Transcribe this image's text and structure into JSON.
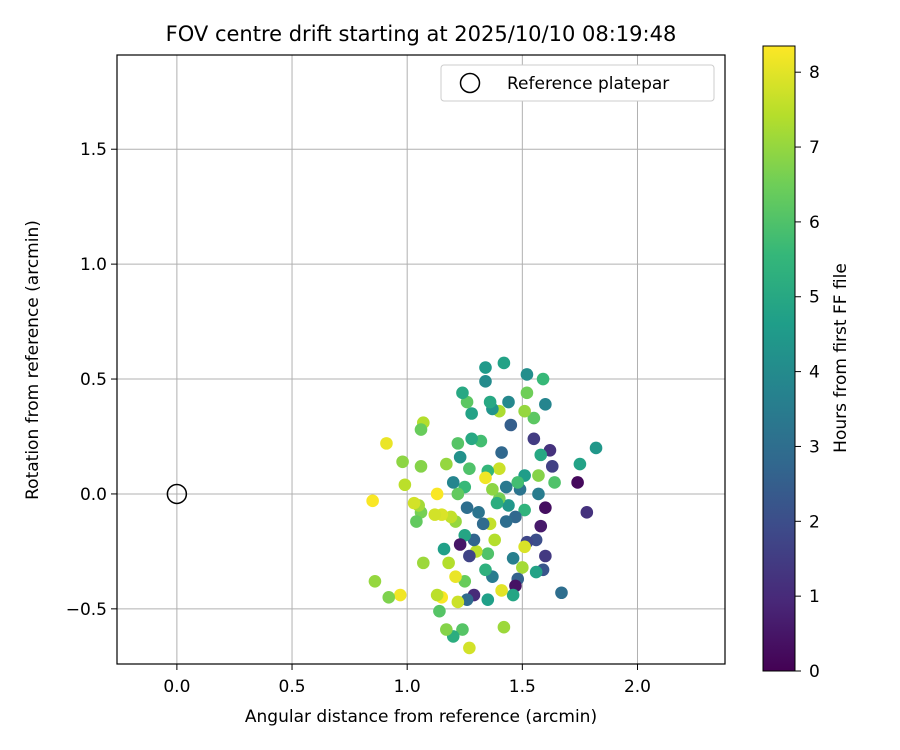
{
  "chart_data": {
    "type": "scatter",
    "title": "FOV centre drift starting at 2025/10/10 08:19:48",
    "xlabel": "Angular distance from reference (arcmin)",
    "ylabel": "Rotation from reference (arcmin)",
    "xlim": [
      -0.26,
      2.38
    ],
    "ylim": [
      -0.74,
      1.91
    ],
    "xticks": [
      0.0,
      0.5,
      1.0,
      1.5,
      2.0
    ],
    "xtick_labels": [
      "0.0",
      "0.5",
      "1.0",
      "1.5",
      "2.0"
    ],
    "yticks": [
      -0.5,
      0.0,
      0.5,
      1.0,
      1.5
    ],
    "ytick_labels": [
      "−0.5",
      "0.0",
      "0.5",
      "1.0",
      "1.5"
    ],
    "grid": true,
    "legend": {
      "position": "top-right",
      "entries": [
        "Reference platepar"
      ]
    },
    "reference_point": {
      "x": 0.0,
      "y": 0.0
    },
    "colorbar": {
      "label": "Hours from first FF file",
      "min": 0,
      "max": 8.35,
      "ticks": [
        0,
        1,
        2,
        3,
        4,
        5,
        6,
        7,
        8
      ],
      "tick_labels": [
        "0",
        "1",
        "2",
        "3",
        "4",
        "5",
        "6",
        "7",
        "8"
      ],
      "colormap": [
        "#440154",
        "#482878",
        "#3e4989",
        "#31688e",
        "#26828e",
        "#1f9e89",
        "#35b779",
        "#6ece58",
        "#b5de2b",
        "#fde725"
      ]
    },
    "points": [
      {
        "x": 1.82,
        "y": 0.2,
        "t": 4.4
      },
      {
        "x": 1.78,
        "y": -0.08,
        "t": 1.2
      },
      {
        "x": 1.74,
        "y": 0.05,
        "t": 0.2
      },
      {
        "x": 1.75,
        "y": 0.13,
        "t": 4.8
      },
      {
        "x": 1.67,
        "y": -0.43,
        "t": 3.0
      },
      {
        "x": 1.64,
        "y": 0.05,
        "t": 6.0
      },
      {
        "x": 1.63,
        "y": 0.12,
        "t": 1.6
      },
      {
        "x": 1.62,
        "y": 0.19,
        "t": 1.2
      },
      {
        "x": 1.6,
        "y": -0.27,
        "t": 1.4
      },
      {
        "x": 1.6,
        "y": -0.06,
        "t": 0.3
      },
      {
        "x": 1.6,
        "y": 0.39,
        "t": 3.8
      },
      {
        "x": 1.59,
        "y": 0.5,
        "t": 5.6
      },
      {
        "x": 1.58,
        "y": -0.14,
        "t": 0.6
      },
      {
        "x": 1.59,
        "y": -0.33,
        "t": 2.2
      },
      {
        "x": 1.58,
        "y": 0.17,
        "t": 5.0
      },
      {
        "x": 1.57,
        "y": 0.08,
        "t": 6.8
      },
      {
        "x": 1.57,
        "y": 0.0,
        "t": 3.5
      },
      {
        "x": 1.56,
        "y": -0.2,
        "t": 2.0
      },
      {
        "x": 1.56,
        "y": -0.34,
        "t": 4.8
      },
      {
        "x": 1.55,
        "y": 0.24,
        "t": 1.5
      },
      {
        "x": 1.55,
        "y": 0.33,
        "t": 6.2
      },
      {
        "x": 1.52,
        "y": -0.21,
        "t": 1.8
      },
      {
        "x": 1.52,
        "y": 0.52,
        "t": 4.1
      },
      {
        "x": 1.52,
        "y": 0.44,
        "t": 6.5
      },
      {
        "x": 1.51,
        "y": 0.36,
        "t": 7.0
      },
      {
        "x": 1.51,
        "y": 0.08,
        "t": 4.6
      },
      {
        "x": 1.51,
        "y": -0.07,
        "t": 5.4
      },
      {
        "x": 1.51,
        "y": -0.23,
        "t": 7.9
      },
      {
        "x": 1.5,
        "y": -0.32,
        "t": 7.2
      },
      {
        "x": 1.49,
        "y": 0.02,
        "t": 3.2
      },
      {
        "x": 1.48,
        "y": -0.37,
        "t": 2.6
      },
      {
        "x": 1.48,
        "y": 0.05,
        "t": 5.8
      },
      {
        "x": 1.47,
        "y": -0.4,
        "t": 0.4
      },
      {
        "x": 1.47,
        "y": -0.1,
        "t": 2.8
      },
      {
        "x": 1.46,
        "y": -0.28,
        "t": 3.6
      },
      {
        "x": 1.46,
        "y": -0.44,
        "t": 4.9
      },
      {
        "x": 1.45,
        "y": 0.3,
        "t": 2.5
      },
      {
        "x": 1.44,
        "y": 0.4,
        "t": 3.9
      },
      {
        "x": 1.44,
        "y": -0.05,
        "t": 4.4
      },
      {
        "x": 1.43,
        "y": -0.12,
        "t": 3.0
      },
      {
        "x": 1.43,
        "y": 0.03,
        "t": 3.4
      },
      {
        "x": 1.42,
        "y": 0.57,
        "t": 4.8
      },
      {
        "x": 1.42,
        "y": -0.58,
        "t": 7.1
      },
      {
        "x": 1.41,
        "y": -0.42,
        "t": 8.0
      },
      {
        "x": 1.41,
        "y": 0.18,
        "t": 2.8
      },
      {
        "x": 1.4,
        "y": 0.36,
        "t": 7.3
      },
      {
        "x": 1.4,
        "y": -0.02,
        "t": 6.6
      },
      {
        "x": 1.4,
        "y": 0.11,
        "t": 7.7
      },
      {
        "x": 1.39,
        "y": -0.04,
        "t": 5.2
      },
      {
        "x": 1.38,
        "y": -0.2,
        "t": 7.4
      },
      {
        "x": 1.37,
        "y": 0.37,
        "t": 4.3
      },
      {
        "x": 1.37,
        "y": -0.36,
        "t": 3.5
      },
      {
        "x": 1.37,
        "y": 0.02,
        "t": 6.9
      },
      {
        "x": 1.36,
        "y": -0.13,
        "t": 7.6
      },
      {
        "x": 1.36,
        "y": 0.4,
        "t": 5.0
      },
      {
        "x": 1.35,
        "y": 0.1,
        "t": 5.5
      },
      {
        "x": 1.35,
        "y": -0.46,
        "t": 4.7
      },
      {
        "x": 1.35,
        "y": -0.26,
        "t": 6.0
      },
      {
        "x": 1.34,
        "y": 0.49,
        "t": 4.0
      },
      {
        "x": 1.34,
        "y": 0.55,
        "t": 4.5
      },
      {
        "x": 1.34,
        "y": 0.07,
        "t": 8.2
      },
      {
        "x": 1.34,
        "y": -0.33,
        "t": 5.3
      },
      {
        "x": 1.33,
        "y": -0.13,
        "t": 2.9
      },
      {
        "x": 1.32,
        "y": 0.23,
        "t": 5.8
      },
      {
        "x": 1.31,
        "y": -0.08,
        "t": 3.2
      },
      {
        "x": 1.3,
        "y": -0.25,
        "t": 7.5
      },
      {
        "x": 1.29,
        "y": -0.44,
        "t": 1.0
      },
      {
        "x": 1.29,
        "y": -0.2,
        "t": 2.7
      },
      {
        "x": 1.28,
        "y": 0.24,
        "t": 5.0
      },
      {
        "x": 1.28,
        "y": 0.35,
        "t": 4.8
      },
      {
        "x": 1.27,
        "y": -0.27,
        "t": 1.7
      },
      {
        "x": 1.27,
        "y": -0.67,
        "t": 7.8
      },
      {
        "x": 1.27,
        "y": 0.11,
        "t": 6.0
      },
      {
        "x": 1.26,
        "y": 0.4,
        "t": 6.2
      },
      {
        "x": 1.26,
        "y": -0.46,
        "t": 2.9
      },
      {
        "x": 1.26,
        "y": -0.06,
        "t": 3.0
      },
      {
        "x": 1.25,
        "y": 0.03,
        "t": 5.6
      },
      {
        "x": 1.25,
        "y": -0.18,
        "t": 4.9
      },
      {
        "x": 1.25,
        "y": -0.38,
        "t": 6.4
      },
      {
        "x": 1.24,
        "y": 0.44,
        "t": 5.0
      },
      {
        "x": 1.24,
        "y": -0.59,
        "t": 6.1
      },
      {
        "x": 1.23,
        "y": -0.22,
        "t": 0.5
      },
      {
        "x": 1.23,
        "y": 0.16,
        "t": 4.2
      },
      {
        "x": 1.22,
        "y": -0.47,
        "t": 7.7
      },
      {
        "x": 1.22,
        "y": 0.0,
        "t": 6.3
      },
      {
        "x": 1.22,
        "y": 0.22,
        "t": 6.1
      },
      {
        "x": 1.21,
        "y": -0.12,
        "t": 7.0
      },
      {
        "x": 1.21,
        "y": -0.36,
        "t": 8.1
      },
      {
        "x": 1.2,
        "y": -0.62,
        "t": 5.2
      },
      {
        "x": 1.2,
        "y": 0.05,
        "t": 3.8
      },
      {
        "x": 1.19,
        "y": -0.1,
        "t": 7.6
      },
      {
        "x": 1.18,
        "y": -0.3,
        "t": 7.4
      },
      {
        "x": 1.17,
        "y": 0.13,
        "t": 7.0
      },
      {
        "x": 1.17,
        "y": -0.59,
        "t": 6.8
      },
      {
        "x": 1.16,
        "y": -0.24,
        "t": 4.7
      },
      {
        "x": 1.15,
        "y": -0.45,
        "t": 8.3
      },
      {
        "x": 1.15,
        "y": -0.09,
        "t": 7.9
      },
      {
        "x": 1.14,
        "y": -0.51,
        "t": 6.1
      },
      {
        "x": 1.13,
        "y": -0.44,
        "t": 7.5
      },
      {
        "x": 1.13,
        "y": 0.0,
        "t": 8.3
      },
      {
        "x": 1.12,
        "y": -0.09,
        "t": 7.8
      },
      {
        "x": 1.07,
        "y": 0.31,
        "t": 7.4
      },
      {
        "x": 1.07,
        "y": -0.3,
        "t": 7.1
      },
      {
        "x": 1.06,
        "y": -0.08,
        "t": 6.6
      },
      {
        "x": 1.06,
        "y": 0.28,
        "t": 6.4
      },
      {
        "x": 1.06,
        "y": 0.12,
        "t": 6.8
      },
      {
        "x": 1.05,
        "y": -0.05,
        "t": 7.2
      },
      {
        "x": 1.04,
        "y": -0.12,
        "t": 6.3
      },
      {
        "x": 1.03,
        "y": -0.04,
        "t": 7.8
      },
      {
        "x": 0.99,
        "y": 0.04,
        "t": 7.5
      },
      {
        "x": 0.98,
        "y": 0.14,
        "t": 6.9
      },
      {
        "x": 0.97,
        "y": -0.44,
        "t": 8.2
      },
      {
        "x": 0.92,
        "y": -0.45,
        "t": 6.7
      },
      {
        "x": 0.91,
        "y": 0.22,
        "t": 8.1
      },
      {
        "x": 0.86,
        "y": -0.38,
        "t": 7.0
      },
      {
        "x": 0.85,
        "y": -0.03,
        "t": 8.3
      }
    ]
  }
}
